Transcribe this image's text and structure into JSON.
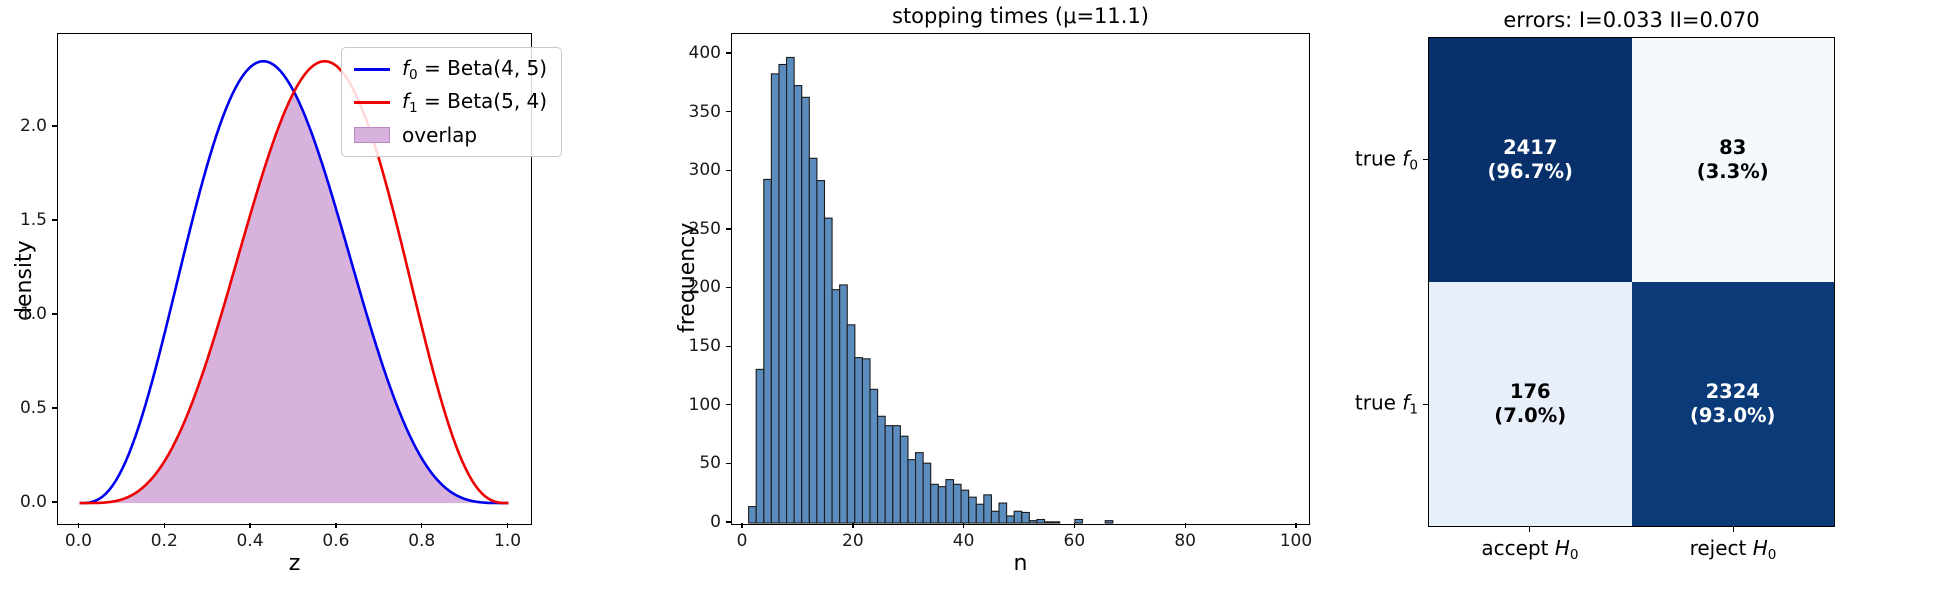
{
  "figure": {
    "background": "#ffffff"
  },
  "chart_data": [
    {
      "id": "density-comparison",
      "type": "line",
      "title": "",
      "xlabel": "z",
      "ylabel": "density",
      "xlim": [
        -0.05,
        1.05
      ],
      "ylim": [
        -0.106,
        2.495
      ],
      "grid": false,
      "legend_position": "upper right",
      "xticks": {
        "values": [
          0,
          0.2,
          0.4,
          0.6,
          0.8,
          1.0
        ],
        "labels": [
          "0.0",
          "0.2",
          "0.4",
          "0.6",
          "0.8",
          "1.0"
        ]
      },
      "yticks": {
        "values": [
          0,
          0.5,
          1.0,
          1.5,
          2.0
        ],
        "labels": [
          "0.0",
          "0.5",
          "1.0",
          "1.5",
          "2.0"
        ]
      },
      "series": [
        {
          "label_parts": [
            {
              "i": "f"
            },
            {
              "sub": "0"
            },
            {
              "t": " = Beta(4, 5)"
            }
          ],
          "beta_params": [
            4,
            5
          ],
          "color": "#0000ee",
          "peak_density": 2.35,
          "mode": 0.4286
        },
        {
          "label_parts": [
            {
              "i": "f"
            },
            {
              "sub": "1"
            },
            {
              "t": " = Beta(5, 4)"
            }
          ],
          "beta_params": [
            5,
            4
          ],
          "color": "#ee0000",
          "peak_density": 2.35,
          "mode": 0.5714
        }
      ],
      "overlap": {
        "label": "overlap",
        "fill": "#d6b2dc",
        "crossing_z": 0.5,
        "crossing_density": 2.19
      }
    },
    {
      "id": "stopping-times-histogram",
      "type": "bar",
      "title": "stopping times (μ=11.1)",
      "xlabel": "n",
      "ylabel": "frequency",
      "xlim": [
        -2,
        102
      ],
      "ylim": [
        0,
        417
      ],
      "grid": false,
      "xticks": {
        "values": [
          0,
          20,
          40,
          60,
          80,
          100
        ],
        "labels": [
          "0",
          "20",
          "40",
          "60",
          "80",
          "100"
        ]
      },
      "yticks": {
        "values": [
          0,
          50,
          100,
          150,
          200,
          250,
          300,
          350,
          400
        ],
        "labels": [
          "0",
          "50",
          "100",
          "150",
          "200",
          "250",
          "300",
          "350",
          "400"
        ]
      },
      "bin_start": 1,
      "bin_width": 1.37,
      "values": [
        14,
        131,
        293,
        383,
        391,
        397,
        373,
        363,
        311,
        292,
        260,
        199,
        203,
        169,
        141,
        140,
        114,
        91,
        83,
        83,
        74,
        54,
        60,
        51,
        33,
        31,
        37,
        33,
        28,
        22,
        16,
        24,
        10,
        17,
        6,
        10,
        9,
        2,
        3,
        1,
        1,
        0,
        0,
        3,
        0,
        0,
        0,
        2
      ],
      "bar_color": "#5b8cbe",
      "bar_edge": "#1c1c1c"
    },
    {
      "id": "error-confusion-matrix",
      "type": "heatmap",
      "title": "errors: I=0.033 II=0.070",
      "row_labels": [
        [
          {
            "t": "true "
          },
          {
            "i": "f"
          },
          {
            "sub": "0"
          }
        ],
        [
          {
            "t": "true "
          },
          {
            "i": "f"
          },
          {
            "sub": "1"
          }
        ]
      ],
      "col_labels": [
        [
          {
            "t": "accept "
          },
          {
            "i": "H"
          },
          {
            "sub": "0"
          }
        ],
        [
          {
            "t": "reject "
          },
          {
            "i": "H"
          },
          {
            "sub": "0"
          }
        ]
      ],
      "cells": [
        [
          {
            "count": "2417",
            "pct": "(96.7%)",
            "bg": "#08306b",
            "fg": "#ffffff"
          },
          {
            "count": "83",
            "pct": "(3.3%)",
            "bg": "#f4f9fe",
            "fg": "#000000"
          }
        ],
        [
          {
            "count": "176",
            "pct": "(7.0%)",
            "bg": "#e7effa",
            "fg": "#000000"
          },
          {
            "count": "2324",
            "pct": "(93.0%)",
            "bg": "#0a3a78",
            "fg": "#ffffff"
          }
        ]
      ]
    }
  ]
}
